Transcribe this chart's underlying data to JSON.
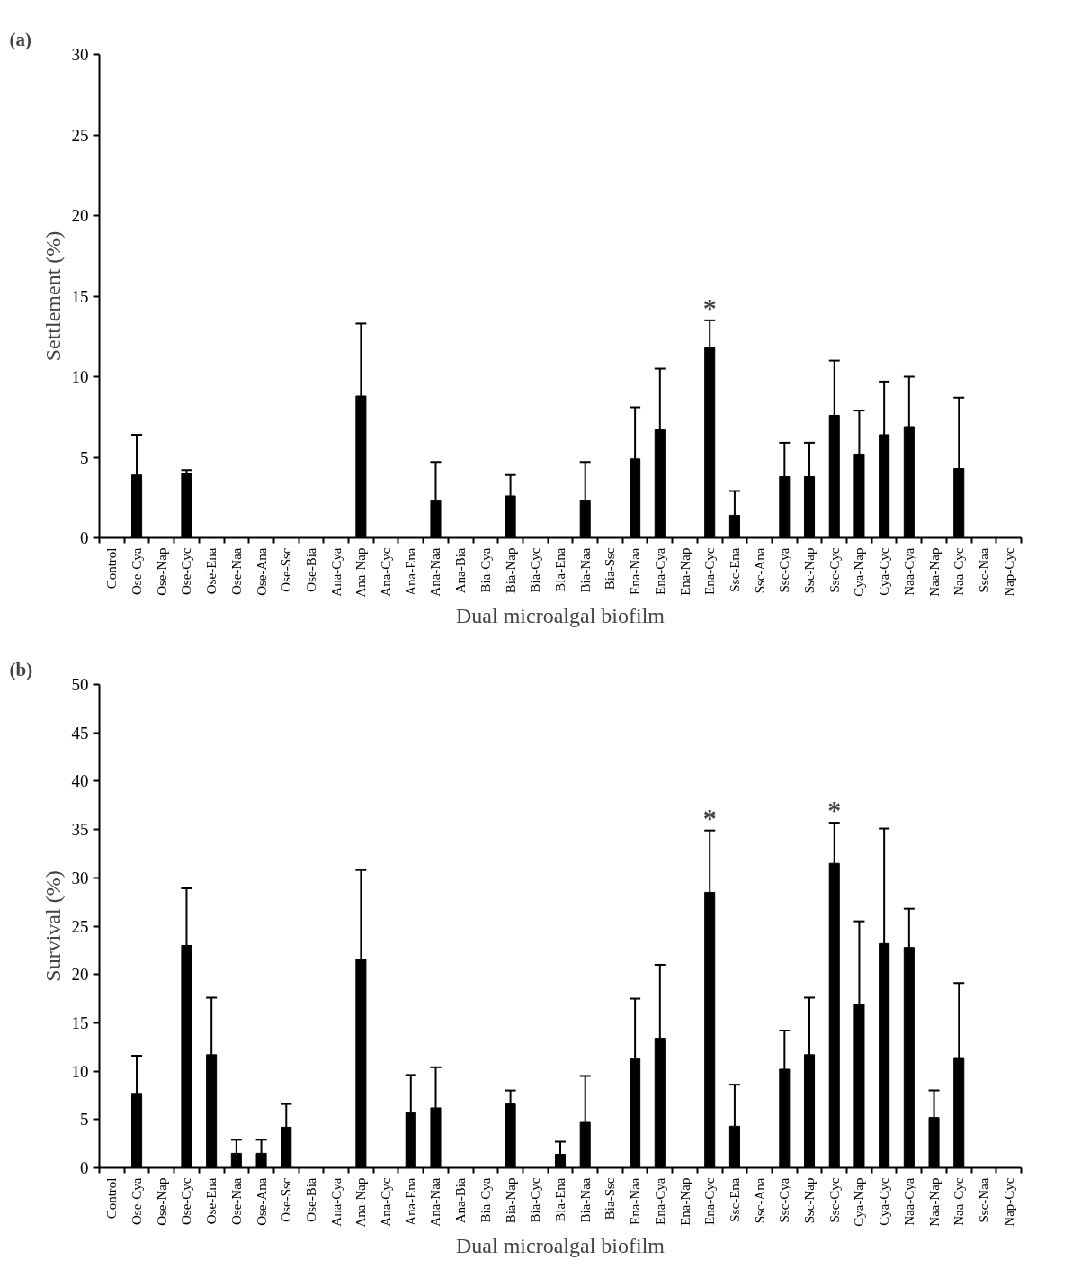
{
  "chart_data": [
    {
      "type": "bar",
      "title": "(a)",
      "xlabel": "Dual microalgal biofilm",
      "ylabel": "Settlement (%)",
      "categories": [
        "Control",
        "Ose-Cya",
        "Ose-Nap",
        "Ose-Cyc",
        "Ose-Ena",
        "Ose-Naa",
        "Ose-Ana",
        "Ose-Ssc",
        "Ose-Bia",
        "Ana-Cya",
        "Ana-Nap",
        "Ana-Cyc",
        "Ana-Ena",
        "Ana-Naa",
        "Ana-Bia",
        "Bia-Cya",
        "Bia-Nap",
        "Bia-Cyc",
        "Bia-Ena",
        "Bia-Naa",
        "Bia-Ssc",
        "Ena-Naa",
        "Ena-Cya",
        "Ena-Nap",
        "Ena-Cyc",
        "Ssc-Ena",
        "Ssc-Ana",
        "Ssc-Cya",
        "Ssc-Nap",
        "Ssc-Cyc",
        "Cya-Nap",
        "Cya-Cyc",
        "Naa-Cya",
        "Naa-Nap",
        "Naa-Cyc",
        "Ssc-Naa",
        "Nap-Cyc"
      ],
      "values": [
        0,
        3.9,
        0,
        4.0,
        0,
        0,
        0,
        0,
        0,
        0,
        8.8,
        0,
        0,
        2.3,
        0,
        0,
        2.6,
        0,
        0,
        2.3,
        0,
        4.9,
        6.7,
        0,
        11.8,
        1.4,
        0,
        3.8,
        3.8,
        7.6,
        5.2,
        6.4,
        6.9,
        0,
        4.3,
        0,
        0
      ],
      "errors": [
        null,
        [
          3.9,
          6.4
        ],
        null,
        [
          4.0,
          4.2
        ],
        null,
        null,
        null,
        null,
        null,
        null,
        [
          8.8,
          13.3
        ],
        null,
        null,
        [
          2.3,
          4.7
        ],
        null,
        null,
        [
          2.6,
          3.9
        ],
        null,
        null,
        [
          2.3,
          4.7
        ],
        null,
        [
          4.9,
          8.1
        ],
        [
          6.7,
          10.5
        ],
        null,
        [
          11.8,
          13.5
        ],
        [
          1.4,
          2.9
        ],
        null,
        [
          3.8,
          5.9
        ],
        [
          3.8,
          5.9
        ],
        [
          7.6,
          11.0
        ],
        [
          5.2,
          7.9
        ],
        [
          6.4,
          9.7
        ],
        [
          6.9,
          10.0
        ],
        null,
        [
          4.3,
          8.7
        ],
        null,
        null
      ],
      "color": "#000000",
      "ylim": [
        0,
        30
      ],
      "yticks": [
        0,
        5,
        10,
        15,
        20,
        25,
        30
      ],
      "grid": false,
      "annotations": [
        {
          "text": "*",
          "x": "Ena-Cyc",
          "y": 11.8
        }
      ]
    },
    {
      "type": "bar",
      "title": "(b)",
      "xlabel": "Dual microalgal biofilm",
      "ylabel": "Survival (%)",
      "categories": [
        "Control",
        "Ose-Cya",
        "Ose-Nap",
        "Ose-Cyc",
        "Ose-Ena",
        "Ose-Naa",
        "Ose-Ana",
        "Ose-Ssc",
        "Ose-Bia",
        "Ana-Cya",
        "Ana-Nap",
        "Ana-Cyc",
        "Ana-Ena",
        "Ana-Naa",
        "Ana-Bia",
        "Bia-Cya",
        "Bia-Nap",
        "Bia-Cyc",
        "Bia-Ena",
        "Bia-Naa",
        "Bia-Ssc",
        "Ena-Naa",
        "Ena-Cya",
        "Ena-Nap",
        "Ena-Cyc",
        "Ssc-Ena",
        "Ssc-Ana",
        "Ssc-Cya",
        "Ssc-Nap",
        "Ssc-Cyc",
        "Cya-Nap",
        "Cya-Cyc",
        "Naa-Cya",
        "Naa-Nap",
        "Naa-Cyc",
        "Ssc-Naa",
        "Nap-Cyc"
      ],
      "values": [
        0,
        7.7,
        0,
        23.0,
        11.7,
        1.5,
        1.5,
        4.2,
        0,
        0,
        21.6,
        0,
        5.7,
        6.2,
        0,
        0,
        6.6,
        0,
        1.4,
        4.7,
        0,
        11.3,
        13.4,
        0,
        28.5,
        4.3,
        0,
        10.2,
        11.7,
        31.5,
        16.9,
        23.2,
        22.8,
        5.2,
        11.4,
        0,
        0
      ],
      "errors": [
        null,
        [
          7.7,
          11.6
        ],
        null,
        [
          23.0,
          28.9
        ],
        [
          11.7,
          17.6
        ],
        [
          1.5,
          2.9
        ],
        [
          1.5,
          2.9
        ],
        [
          4.2,
          6.6
        ],
        null,
        null,
        [
          21.6,
          30.8
        ],
        null,
        [
          5.7,
          9.6
        ],
        [
          6.2,
          10.4
        ],
        null,
        null,
        [
          6.6,
          8.0
        ],
        null,
        [
          1.4,
          2.7
        ],
        [
          4.7,
          9.5
        ],
        null,
        [
          11.3,
          17.5
        ],
        [
          13.4,
          21.0
        ],
        null,
        [
          28.5,
          34.9
        ],
        [
          4.3,
          8.6
        ],
        null,
        [
          10.2,
          14.2
        ],
        [
          11.7,
          17.6
        ],
        [
          31.5,
          35.7
        ],
        [
          16.9,
          25.5
        ],
        [
          23.2,
          35.1
        ],
        [
          22.8,
          26.8
        ],
        [
          5.2,
          8.0
        ],
        [
          11.4,
          19.1
        ],
        null,
        null
      ],
      "color": "#000000",
      "ylim": [
        0,
        50
      ],
      "yticks": [
        0,
        5,
        10,
        15,
        20,
        25,
        30,
        35,
        40,
        45,
        50
      ],
      "grid": false,
      "annotations": [
        {
          "text": "*",
          "x": "Ena-Cyc",
          "y": 28.5
        },
        {
          "text": "*",
          "x": "Ssc-Cyc",
          "y": 31.5
        }
      ]
    }
  ]
}
